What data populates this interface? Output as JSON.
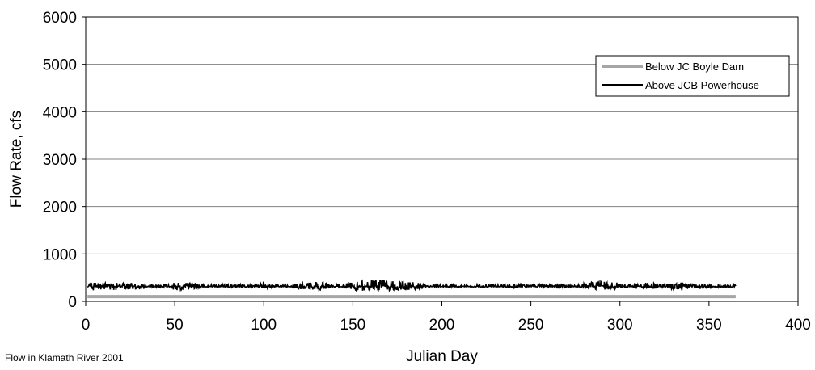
{
  "chart_data": {
    "type": "line",
    "title": "",
    "xlabel": "Julian Day",
    "ylabel": "Flow Rate, cfs",
    "xlim": [
      0,
      400
    ],
    "ylim": [
      0,
      6000
    ],
    "x_ticks": [
      "0",
      "50",
      "100",
      "150",
      "200",
      "250",
      "300",
      "350",
      "400"
    ],
    "y_ticks": [
      "0",
      "1000",
      "2000",
      "3000",
      "4000",
      "5000",
      "6000"
    ],
    "grid": "horizontal",
    "legend_position": "top-right",
    "x_range": [
      1,
      365
    ],
    "series": [
      {
        "name": "Below JC Boyle Dam",
        "color": "#a6a6a6",
        "values_note": "",
        "x": [
          1,
          365
        ],
        "y": [
          100,
          100
        ]
      },
      {
        "name": "Above JCB Powerhouse",
        "color": "#000000",
        "x": [
          1,
          5,
          10,
          15,
          20,
          25,
          30,
          35,
          40,
          45,
          50,
          55,
          60,
          65,
          70,
          75,
          80,
          85,
          90,
          95,
          100,
          105,
          110,
          115,
          120,
          125,
          130,
          135,
          140,
          145,
          150,
          155,
          160,
          165,
          170,
          175,
          180,
          185,
          190,
          195,
          200,
          205,
          210,
          215,
          220,
          225,
          230,
          235,
          240,
          245,
          250,
          255,
          260,
          265,
          270,
          275,
          280,
          285,
          290,
          295,
          300,
          305,
          310,
          315,
          320,
          325,
          330,
          335,
          340,
          345,
          350,
          355,
          360,
          365
        ],
        "y_min": [
          220,
          230,
          250,
          240,
          230,
          240,
          250,
          310,
          300,
          310,
          230,
          250,
          250,
          300,
          310,
          310,
          290,
          300,
          300,
          310,
          250,
          300,
          310,
          310,
          250,
          260,
          230,
          250,
          310,
          300,
          230,
          220,
          220,
          230,
          230,
          240,
          230,
          250,
          300,
          310,
          310,
          300,
          310,
          310,
          300,
          300,
          310,
          300,
          300,
          310,
          310,
          300,
          300,
          310,
          300,
          310,
          260,
          240,
          240,
          250,
          260,
          300,
          260,
          280,
          250,
          300,
          250,
          230,
          300,
          260,
          300,
          300,
          300,
          300
        ],
        "y_max": [
          380,
          400,
          390,
          380,
          400,
          380,
          370,
          350,
          350,
          350,
          410,
          390,
          400,
          360,
          350,
          350,
          360,
          360,
          360,
          350,
          400,
          370,
          350,
          350,
          380,
          400,
          410,
          400,
          360,
          360,
          430,
          440,
          460,
          450,
          440,
          430,
          420,
          400,
          370,
          350,
          350,
          360,
          350,
          350,
          360,
          360,
          350,
          360,
          360,
          350,
          350,
          360,
          360,
          350,
          360,
          350,
          380,
          420,
          420,
          400,
          400,
          360,
          380,
          400,
          380,
          370,
          380,
          400,
          360,
          370,
          360,
          360,
          360,
          350
        ]
      }
    ]
  },
  "caption": "Flow in Klamath River 2001"
}
